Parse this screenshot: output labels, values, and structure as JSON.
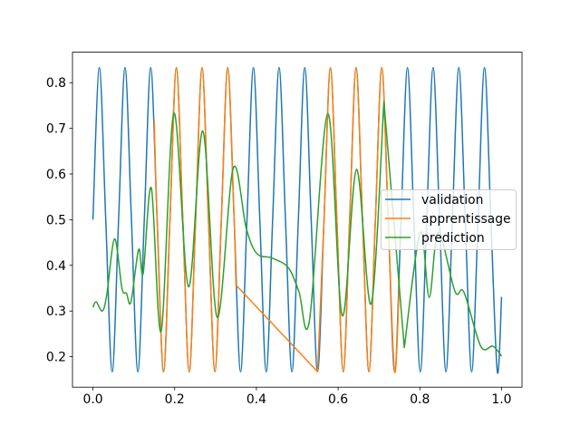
{
  "chart_data": {
    "type": "line",
    "title": "",
    "xlabel": "",
    "ylabel": "",
    "xlim": [
      -0.05,
      1.05
    ],
    "ylim": [
      0.1333,
      0.8667
    ],
    "xticks": [
      "0.0",
      "0.2",
      "0.4",
      "0.6",
      "0.8",
      "1.0"
    ],
    "yticks": [
      "0.2",
      "0.3",
      "0.4",
      "0.5",
      "0.6",
      "0.7",
      "0.8"
    ],
    "grid": false,
    "legend_position": "center-right",
    "series": [
      {
        "name": "validation",
        "color": "#1f77b4",
        "x": [
          0,
          0.0157,
          0.0314,
          0.0471,
          0.0628,
          0.0785,
          0.0942,
          0.11,
          0.1257,
          0.1414,
          0.1571,
          0.1728,
          0.1885,
          0.2042,
          0.2199,
          0.2356,
          0.2513,
          0.267,
          0.2827,
          0.2985,
          0.3142,
          0.3299,
          0.3456,
          0.3613,
          0.377,
          0.3927,
          0.4084,
          0.4241,
          0.4398,
          0.4555,
          0.4712,
          0.4869,
          0.5027,
          0.5184,
          0.5341,
          0.5498,
          0.5655,
          0.5812,
          0.5969,
          0.6126,
          0.6283,
          0.644,
          0.6597,
          0.6754,
          0.6912,
          0.7069,
          0.7226,
          0.7383,
          0.754,
          0.7697,
          0.7854,
          0.8011,
          0.8168,
          0.8325,
          0.8482,
          0.8639,
          0.8796,
          0.8954,
          0.9111,
          0.9268,
          0.9425,
          0.9582,
          0.9739,
          0.9896,
          1.0
        ],
        "y": [
          0.5,
          0.833,
          0.5,
          0.167,
          0.5,
          0.833,
          0.5,
          0.167,
          0.5,
          0.833,
          0.5,
          0.167,
          0.5,
          0.833,
          0.5,
          0.167,
          0.5,
          0.833,
          0.5,
          0.167,
          0.5,
          0.833,
          0.5,
          0.167,
          0.5,
          0.833,
          0.5,
          0.167,
          0.5,
          0.833,
          0.5,
          0.167,
          0.5,
          0.833,
          0.5,
          0.167,
          0.5,
          0.833,
          0.5,
          0.167,
          0.5,
          0.833,
          0.5,
          0.167,
          0.5,
          0.833,
          0.5,
          0.167,
          0.5,
          0.833,
          0.5,
          0.167,
          0.5,
          0.833,
          0.5,
          0.167,
          0.5,
          0.833,
          0.5,
          0.167,
          0.5,
          0.833,
          0.5,
          0.167,
          0.331
        ]
      },
      {
        "name": "apprentissage",
        "color": "#ff7f0e",
        "x": [
          0.15,
          0.1571,
          0.1728,
          0.1885,
          0.2042,
          0.2199,
          0.2356,
          0.2513,
          0.267,
          0.2827,
          0.2985,
          0.3142,
          0.3299,
          0.3456,
          0.35,
          0.5498,
          0.5655,
          0.5812,
          0.5969,
          0.6126,
          0.6283,
          0.644,
          0.6597,
          0.6754,
          0.6912,
          0.7069,
          0.7226,
          0.7383,
          0.75
        ],
        "y": [
          0.717,
          0.5,
          0.167,
          0.5,
          0.833,
          0.5,
          0.167,
          0.5,
          0.833,
          0.5,
          0.167,
          0.5,
          0.833,
          0.5,
          0.357,
          0.167,
          0.5,
          0.833,
          0.5,
          0.167,
          0.5,
          0.833,
          0.5,
          0.167,
          0.5,
          0.833,
          0.5,
          0.167,
          0.371
        ]
      },
      {
        "name": "prediction",
        "color": "#2ca02c",
        "x": [
          0.0,
          0.008,
          0.023,
          0.034,
          0.053,
          0.071,
          0.082,
          0.093,
          0.112,
          0.123,
          0.143,
          0.167,
          0.198,
          0.234,
          0.269,
          0.304,
          0.343,
          0.375,
          0.401,
          0.438,
          0.478,
          0.504,
          0.53,
          0.575,
          0.61,
          0.645,
          0.681,
          0.712,
          0.762,
          0.801,
          0.823,
          0.845,
          0.886,
          0.908,
          0.949,
          0.979,
          1.0
        ],
        "y": [
          0.308,
          0.32,
          0.3,
          0.336,
          0.458,
          0.35,
          0.339,
          0.32,
          0.435,
          0.383,
          0.569,
          0.256,
          0.733,
          0.353,
          0.694,
          0.286,
          0.612,
          0.482,
          0.426,
          0.416,
          0.395,
          0.343,
          0.28,
          0.732,
          0.29,
          0.61,
          0.316,
          0.759,
          0.22,
          0.472,
          0.33,
          0.472,
          0.343,
          0.341,
          0.223,
          0.223,
          0.201
        ]
      }
    ]
  }
}
